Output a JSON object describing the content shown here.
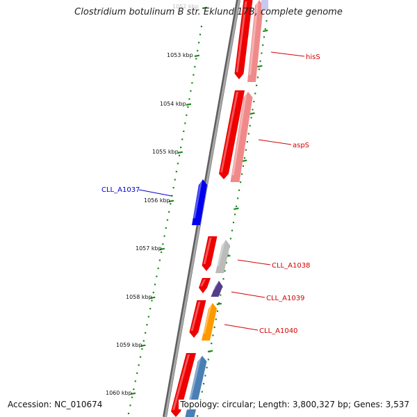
{
  "title": "Clostridium botulinum B str. Eklund 17B, complete genome",
  "accession": "Accession: NC_010674",
  "topology": "Topology: circular; Length: 3,800,327 bp; Genes: 3,537",
  "ticks": [
    {
      "label": "1052 kbp",
      "faded": true
    },
    {
      "label": "1053 kbp"
    },
    {
      "label": "1054 kbp"
    },
    {
      "label": "1055 kbp"
    },
    {
      "label": "1056 kbp"
    },
    {
      "label": "1057 kbp"
    },
    {
      "label": "1058 kbp"
    },
    {
      "label": "1059 kbp"
    },
    {
      "label": "1060 kbp"
    }
  ],
  "gene_labels": [
    {
      "id": "hisS",
      "text": "hisS",
      "color": "#d40000"
    },
    {
      "id": "aspS",
      "text": "aspS",
      "color": "#d40000"
    },
    {
      "id": "CLL_A1037",
      "text": "CLL_A1037",
      "color": "#0000cc"
    },
    {
      "id": "CLL_A1038",
      "text": "CLL_A1038",
      "color": "#d40000"
    },
    {
      "id": "CLL_A1039",
      "text": "CLL_A1039",
      "color": "#d40000"
    },
    {
      "id": "CLL_A1040",
      "text": "CLL_A1040",
      "color": "#d40000"
    }
  ],
  "colors": {
    "backbone": "#8a8a8a",
    "tick": "#1f8a1f",
    "cds": "#ee0000",
    "gene_pink": "#f08a8a",
    "gene_gray": "#bbbbbb",
    "gene_purple": "#553c8c",
    "gene_orange": "#ff9900",
    "gene_steelblue": "#4a7fb5",
    "gene_blue": "#0000ee"
  }
}
